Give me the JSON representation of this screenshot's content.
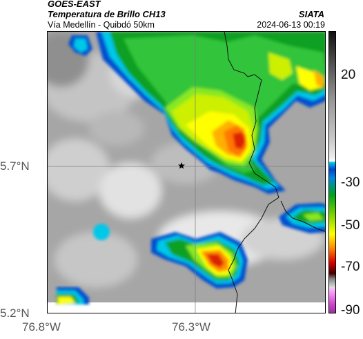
{
  "header": {
    "satellite": "GOES-EAST",
    "product": "Temperatura de Brillo CH13",
    "org": "SIATA",
    "route": "Vía Medellín - Quibdó 50km",
    "timestamp": "2024-06-13 00:19"
  },
  "axes": {
    "lat_labels": [
      "5.7°N",
      "5.2°N"
    ],
    "lon_labels": [
      "76.8°W",
      "76.3°W"
    ]
  },
  "colorbar": {
    "ticks": [
      "20",
      "-30",
      "-50",
      "-70",
      "-90"
    ],
    "colors": {
      "top": "#111111",
      "warm_gray": "#9a9a9a",
      "light_gray": "#eeeeee",
      "cyan": "#00ccee",
      "blue": "#0044cc",
      "green": "#00a020",
      "yellow": "#ffff00",
      "orange": "#ff8800",
      "red": "#dd0000",
      "dark_red": "#440000",
      "magenta": "#cc44cc"
    }
  },
  "map": {
    "marker": "star-icon",
    "gridlines": true
  }
}
